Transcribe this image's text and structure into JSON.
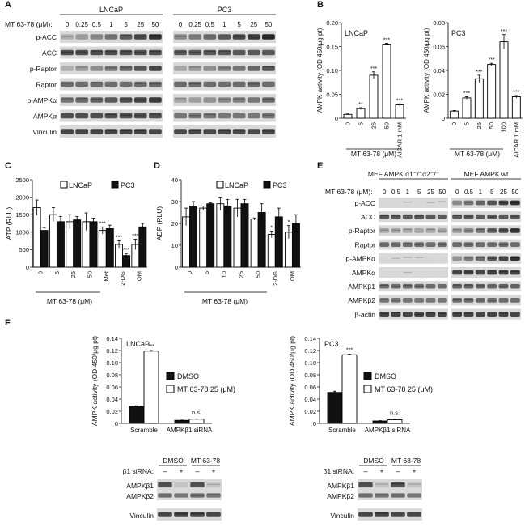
{
  "panel_letters": [
    "A",
    "B",
    "C",
    "D",
    "E",
    "F"
  ],
  "panelA": {
    "treatment_label": "MT 63-78 (μM):",
    "doses": [
      "0",
      "0.25",
      "0.5",
      "1",
      "5",
      "25",
      "50"
    ],
    "lines": [
      "LNCaP",
      "PC3"
    ],
    "rows": [
      "p-ACC",
      "ACC",
      "p-Raptor",
      "Raptor",
      "p-AMPKα",
      "AMPKα",
      "Vinculin"
    ]
  },
  "panelE": {
    "group_left": "MEF AMPK α1⁻/⁻α2⁻/⁻",
    "group_right": "MEF AMPK wt",
    "treatment_label": "MT 63-78 (μM):",
    "doses": [
      "0",
      "0.5",
      "1",
      "5",
      "25",
      "50"
    ],
    "rows": [
      "p-ACC",
      "ACC",
      "p-Raptor",
      "Raptor",
      "p-AMPKα",
      "AMPKα",
      "AMPKβ1",
      "AMPKβ2",
      "β-actin"
    ]
  },
  "panelF_blots": {
    "header_dmso": "DMSO",
    "header_mt": "MT 63-78",
    "sirna_label": "β1 siRNA:",
    "signs": [
      "–",
      "+",
      "–",
      "+"
    ],
    "rows": [
      "AMPKβ1",
      "AMPKβ2",
      "Vinculin"
    ]
  },
  "chart_data": [
    {
      "id": "B-LNCaP",
      "type": "bar",
      "title": "LNCaP",
      "ylabel": "AMPK activity (OD 450/μg pt)",
      "xlabel": "MT 63-78 (μM)",
      "ylim": [
        0,
        0.2
      ],
      "yticks": [
        "0",
        "0.05",
        "0.10",
        "0.15",
        "0.20"
      ],
      "categories": [
        "0",
        "5",
        "25",
        "50",
        "AICAR 1 mM"
      ],
      "values": [
        0.008,
        0.02,
        0.09,
        0.155,
        0.028
      ],
      "errors": [
        0.001,
        0.002,
        0.007,
        0.002,
        0.002
      ],
      "significance": [
        "",
        "**",
        "***",
        "***",
        "***"
      ]
    },
    {
      "id": "B-PC3",
      "type": "bar",
      "title": "PC3",
      "ylabel": "AMPK activity (OD 450/μg pt)",
      "xlabel": "MT 63-78 (μM)",
      "ylim": [
        0,
        0.08
      ],
      "yticks": [
        "0",
        "0.02",
        "0.04",
        "0.06",
        "0.08"
      ],
      "categories": [
        "0",
        "5",
        "25",
        "50",
        "100",
        "AICAR 1 mM"
      ],
      "values": [
        0.006,
        0.017,
        0.033,
        0.045,
        0.064,
        0.018
      ],
      "errors": [
        0.0005,
        0.001,
        0.003,
        0.001,
        0.006,
        0.001
      ],
      "significance": [
        "",
        "***",
        "***",
        "***",
        "***",
        "***"
      ]
    },
    {
      "id": "C",
      "type": "bar",
      "title": "",
      "ylabel": "ATP (RLU)",
      "xlabel": "MT 63-78 (μM)",
      "ylim": [
        0,
        2500
      ],
      "yticks": [
        "0",
        "500",
        "1000",
        "1500",
        "2000",
        "2500"
      ],
      "categories": [
        "0",
        "5",
        "25",
        "50",
        "Met",
        "2-DG",
        "OM"
      ],
      "legend": [
        "LNCaP",
        "PC3"
      ],
      "series": [
        {
          "name": "LNCaP",
          "values": [
            1700,
            1500,
            1300,
            1300,
            1050,
            650,
            650
          ],
          "errors": [
            220,
            200,
            200,
            250,
            100,
            100,
            150
          ],
          "significance": [
            "",
            "",
            "",
            "",
            "***",
            "***",
            "***"
          ]
        },
        {
          "name": "PC3",
          "values": [
            1050,
            1300,
            1350,
            1300,
            1100,
            330,
            1150
          ],
          "errors": [
            80,
            150,
            100,
            100,
            100,
            60,
            100
          ],
          "significance": [
            "",
            "",
            "",
            "",
            "",
            "***",
            ""
          ]
        }
      ]
    },
    {
      "id": "D",
      "type": "bar",
      "title": "",
      "ylabel": "ADP (RLU)",
      "xlabel": "MT 63-78 (μM)",
      "ylim": [
        0,
        40
      ],
      "yticks": [
        "0",
        "10",
        "20",
        "30",
        "40"
      ],
      "categories": [
        "0",
        "5",
        "10",
        "25",
        "50",
        "2-DG",
        "OM"
      ],
      "legend": [
        "LNCaP",
        "PC3"
      ],
      "series": [
        {
          "name": "LNCaP",
          "values": [
            23,
            27,
            29,
            27,
            22,
            15,
            16
          ],
          "errors": [
            4,
            1,
            3,
            4,
            0.5,
            1.5,
            3
          ],
          "significance": [
            "",
            "",
            "",
            "",
            "",
            "*",
            "*"
          ]
        },
        {
          "name": "PC3",
          "values": [
            28,
            29,
            28,
            29,
            25,
            23,
            20
          ],
          "errors": [
            2,
            0.5,
            3,
            2,
            4,
            4,
            4
          ],
          "significance": [
            "",
            "",
            "",
            "",
            "",
            "",
            ""
          ]
        }
      ]
    },
    {
      "id": "F-LNCaP",
      "type": "bar",
      "title": "LNCaP",
      "ylabel": "AMPK activity (OD 450/μg pt)",
      "xlabel": "",
      "ylim": [
        0,
        0.14
      ],
      "yticks": [
        "0",
        "0.02",
        "0.04",
        "0.06",
        "0.08",
        "0.10",
        "0.12",
        "0.14"
      ],
      "categories": [
        "Scramble",
        "AMPKβ1 siRNA"
      ],
      "legend": [
        "DMSO",
        "MT 63-78 25 (μM)"
      ],
      "series": [
        {
          "name": "DMSO",
          "values": [
            0.028,
            0.005
          ],
          "errors": [
            0.001,
            0.0005
          ]
        },
        {
          "name": "MT 63-78 25 (μM)",
          "values": [
            0.119,
            0.007
          ],
          "errors": [
            0.001,
            0.0005
          ]
        }
      ],
      "annotations": [
        "***",
        "n.s."
      ]
    },
    {
      "id": "F-PC3",
      "type": "bar",
      "title": "PC3",
      "ylabel": "AMPK activity (OD 450/μg pt)",
      "xlabel": "",
      "ylim": [
        0,
        0.14
      ],
      "yticks": [
        "0",
        "0.02",
        "0.04",
        "0.06",
        "0.08",
        "0.10",
        "0.12",
        "0.14"
      ],
      "categories": [
        "Scramble",
        "AMPKβ1 siRNA"
      ],
      "legend": [
        "DMSO",
        "MT 63-78 25 (μM)"
      ],
      "series": [
        {
          "name": "DMSO",
          "values": [
            0.051,
            0.004
          ],
          "errors": [
            0.002,
            0.0005
          ]
        },
        {
          "name": "MT 63-78 25 (μM)",
          "values": [
            0.113,
            0.006
          ],
          "errors": [
            0.001,
            0.0005
          ]
        }
      ],
      "annotations": [
        "***",
        "n.s."
      ]
    }
  ]
}
